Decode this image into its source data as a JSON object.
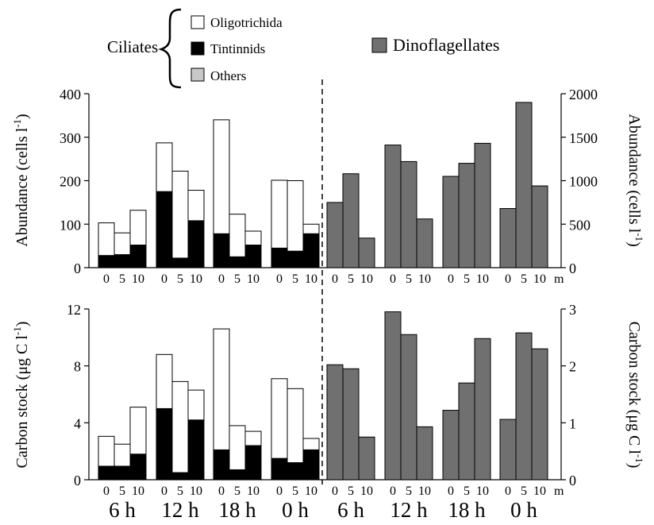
{
  "legend": {
    "group_label": "Ciliates",
    "items": [
      {
        "name": "Oligotrichida",
        "color": "#ffffff"
      },
      {
        "name": "Tintinnids",
        "color": "#000000"
      },
      {
        "name": "Others",
        "color": "#c8c8c8"
      }
    ],
    "dino": {
      "name": "Dinoflagellates",
      "color": "#707070"
    }
  },
  "depth_ticks": [
    "0",
    "5",
    "10"
  ],
  "depth_unit": "m",
  "time_labels": [
    "6 h",
    "12 h",
    "18 h",
    "0 h",
    "6 h",
    "12 h",
    "18 h",
    "0 h"
  ],
  "chart_data": [
    {
      "type": "bar",
      "panel": "top-left",
      "ylabel": "Abundance (cells l",
      "ylabel_sup": "-1",
      "ylabel_end": ")",
      "ylim": [
        0,
        400
      ],
      "yticks": [
        "0",
        "100",
        "200",
        "300",
        "400"
      ],
      "groups": [
        "6 h",
        "12 h",
        "18 h",
        "0 h"
      ],
      "depths": [
        "0",
        "5",
        "10"
      ],
      "series": [
        {
          "name": "Tintinnids",
          "values": [
            [
              28,
              30,
              52
            ],
            [
              175,
              22,
              108
            ],
            [
              78,
              25,
              52
            ],
            [
              45,
              38,
              78
            ]
          ]
        },
        {
          "name": "Oligotrichida",
          "values": [
            [
              75,
              50,
              80
            ],
            [
              112,
              200,
              70
            ],
            [
              262,
              98,
              32
            ],
            [
              156,
              162,
              22
            ]
          ]
        }
      ]
    },
    {
      "type": "bar",
      "panel": "top-right",
      "ylabel": "Abundance (cells l",
      "ylabel_sup": "-1",
      "ylabel_end": ")",
      "ylim": [
        0,
        2000
      ],
      "yticks": [
        "0",
        "500",
        "1000",
        "1500",
        "2000"
      ],
      "groups": [
        "6 h",
        "12 h",
        "18 h",
        "0 h"
      ],
      "depths": [
        "0",
        "5",
        "10"
      ],
      "series": [
        {
          "name": "Dinoflagellates",
          "values": [
            [
              750,
              1080,
              340
            ],
            [
              1410,
              1220,
              560
            ],
            [
              1050,
              1200,
              1430
            ],
            [
              680,
              1900,
              940
            ]
          ]
        }
      ]
    },
    {
      "type": "bar",
      "panel": "bottom-left",
      "ylabel": "Carbon stock (μg C l",
      "ylabel_sup": "-1",
      "ylabel_end": ")",
      "ylim": [
        0,
        12
      ],
      "yticks": [
        "0",
        "4",
        "8",
        "12"
      ],
      "groups": [
        "6 h",
        "12 h",
        "18 h",
        "0 h"
      ],
      "depths": [
        "0",
        "5",
        "10"
      ],
      "series": [
        {
          "name": "Tintinnids",
          "values": [
            [
              0.95,
              0.95,
              1.8
            ],
            [
              5.0,
              0.5,
              4.2
            ],
            [
              2.1,
              0.7,
              2.4
            ],
            [
              1.5,
              1.2,
              2.1
            ]
          ]
        },
        {
          "name": "Oligotrichida",
          "values": [
            [
              2.1,
              1.55,
              3.3
            ],
            [
              3.8,
              6.4,
              2.1
            ],
            [
              8.5,
              3.1,
              1.0
            ],
            [
              5.6,
              5.2,
              0.8
            ]
          ]
        }
      ]
    },
    {
      "type": "bar",
      "panel": "bottom-right",
      "ylabel": "Carbon stock (μg C l",
      "ylabel_sup": "-1",
      "ylabel_end": ")",
      "ylim": [
        0,
        3
      ],
      "yticks": [
        "0",
        "1",
        "2",
        "3"
      ],
      "groups": [
        "6 h",
        "12 h",
        "18 h",
        "0 h"
      ],
      "depths": [
        "0",
        "5",
        "10"
      ],
      "series": [
        {
          "name": "Dinoflagellates",
          "values": [
            [
              2.02,
              1.95,
              0.75
            ],
            [
              2.95,
              2.55,
              0.93
            ],
            [
              1.22,
              1.7,
              2.48
            ],
            [
              1.06,
              2.58,
              2.3
            ]
          ]
        }
      ]
    }
  ]
}
